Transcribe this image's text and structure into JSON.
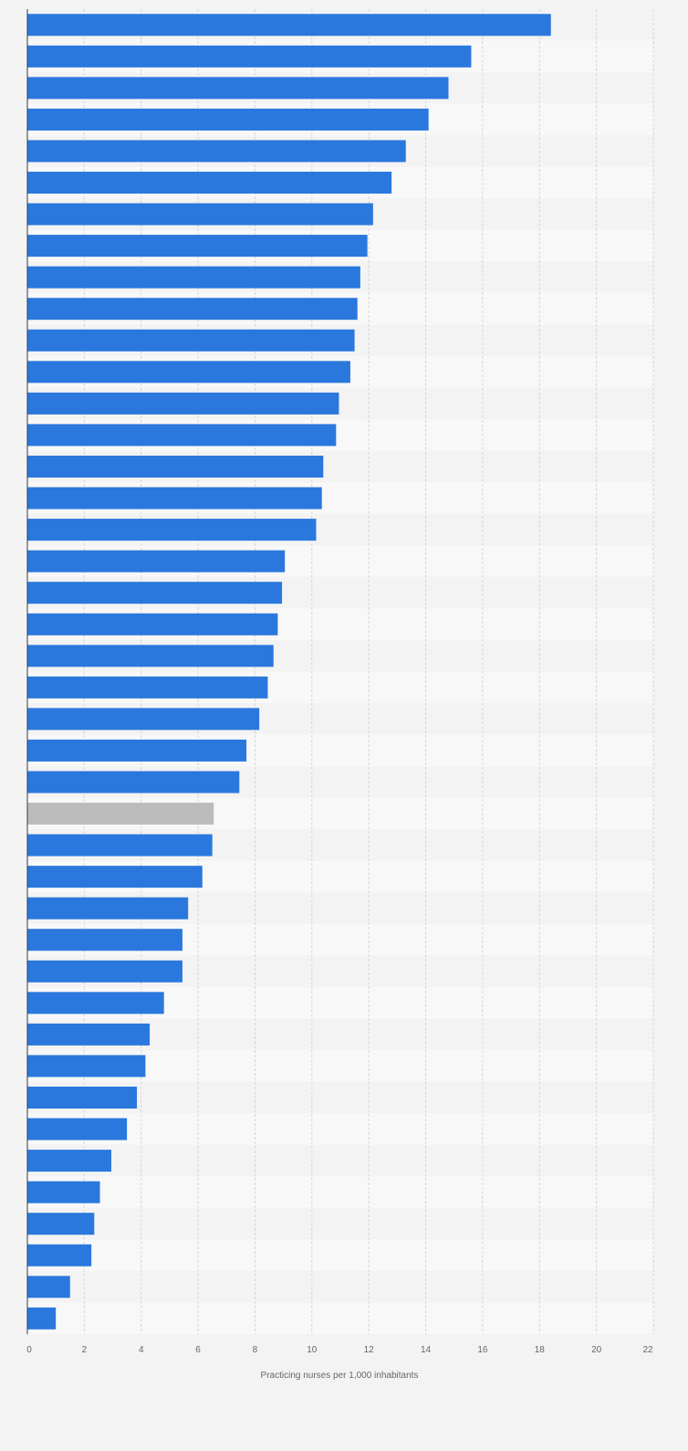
{
  "chart_data": {
    "type": "bar",
    "orientation": "horizontal",
    "title": "",
    "xlabel": "Practicing nurses per 1,000 inhabitants",
    "ylabel": "",
    "xlim": [
      0,
      22
    ],
    "x_ticks": [
      0,
      2,
      4,
      6,
      8,
      10,
      12,
      14,
      16,
      18,
      20,
      22
    ],
    "grid": "vertical dashed",
    "legend": "none",
    "colors": {
      "bar": "#2a78dd",
      "highlight": "#bcbcbc",
      "band_dark": "#f3f3f3",
      "band_light": "#f8f8f8",
      "grid": "#d6d6d6",
      "axis": "#2f3e4e"
    },
    "highlight_index": 25,
    "values": [
      18.4,
      15.6,
      14.8,
      14.1,
      13.3,
      12.8,
      12.15,
      11.95,
      11.7,
      11.6,
      11.5,
      11.35,
      10.95,
      10.85,
      10.4,
      10.35,
      10.15,
      9.05,
      8.95,
      8.8,
      8.65,
      8.45,
      8.15,
      7.7,
      7.45,
      6.55,
      6.5,
      6.15,
      5.65,
      5.45,
      5.45,
      4.8,
      4.3,
      4.15,
      3.85,
      3.5,
      2.95,
      2.55,
      2.35,
      2.25,
      1.5,
      1.0
    ]
  }
}
